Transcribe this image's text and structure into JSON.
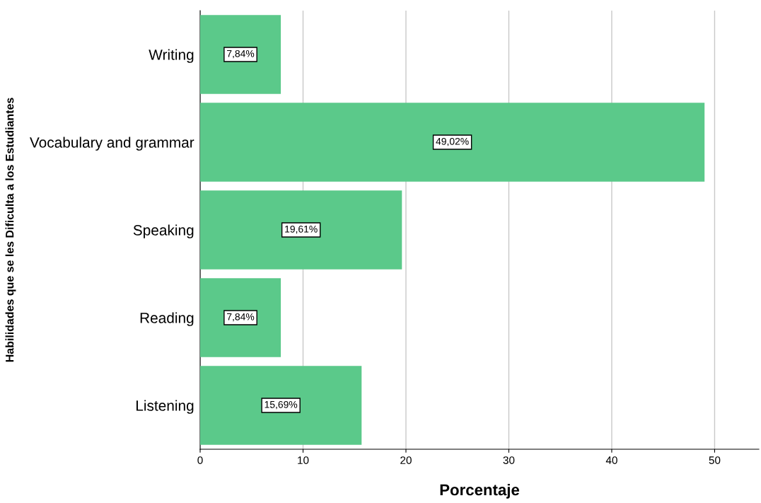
{
  "chart_data": {
    "type": "bar",
    "orientation": "horizontal",
    "categories": [
      "Writing",
      "Vocabulary and grammar",
      "Speaking",
      "Reading",
      "Listening"
    ],
    "values": [
      7.84,
      49.02,
      19.61,
      7.84,
      15.69
    ],
    "value_labels": [
      "7,84%",
      "49,02%",
      "19,61%",
      "7,84%",
      "15,69%"
    ],
    "color": "#5bc98a",
    "xlabel": "Porcentaje",
    "ylabel": "Habilidades que se les Dificulta a los Estudiantes",
    "xlim": [
      0,
      54.3
    ],
    "xticks": [
      0,
      10,
      20,
      30,
      40,
      50
    ],
    "grid": "x",
    "legend": false
  }
}
